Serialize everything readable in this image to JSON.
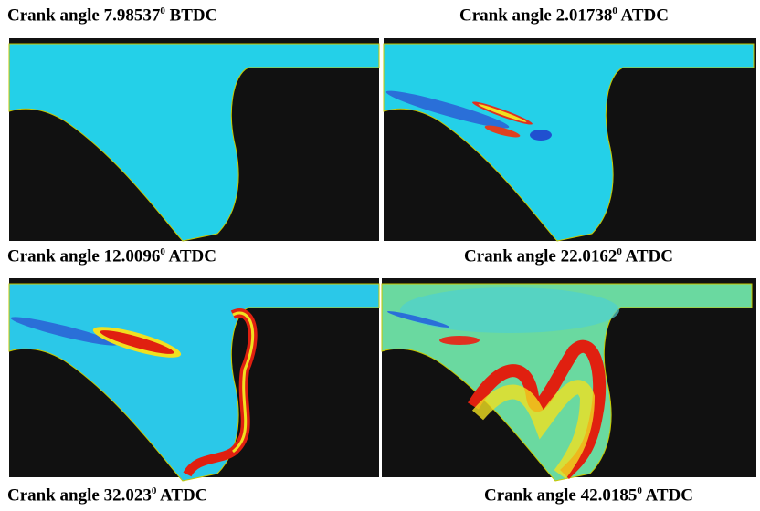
{
  "captions": [
    {
      "text": "Crank angle 7.98537",
      "sup": "0",
      "suffix": "BTDC"
    },
    {
      "text": "Crank angle 2.01738",
      "sup": "0",
      "suffix": "ATDC"
    },
    {
      "text": "Crank angle 12.0096",
      "sup": "0",
      "suffix": "ATDC"
    },
    {
      "text": "Crank angle 22.0162",
      "sup": "0",
      "suffix": "ATDC"
    },
    {
      "text": "Crank angle 32.023",
      "sup": "0",
      "suffix": "ATDC"
    },
    {
      "text": "Crank angle 42.0185",
      "sup": "0",
      "suffix": "ATDC"
    }
  ]
}
